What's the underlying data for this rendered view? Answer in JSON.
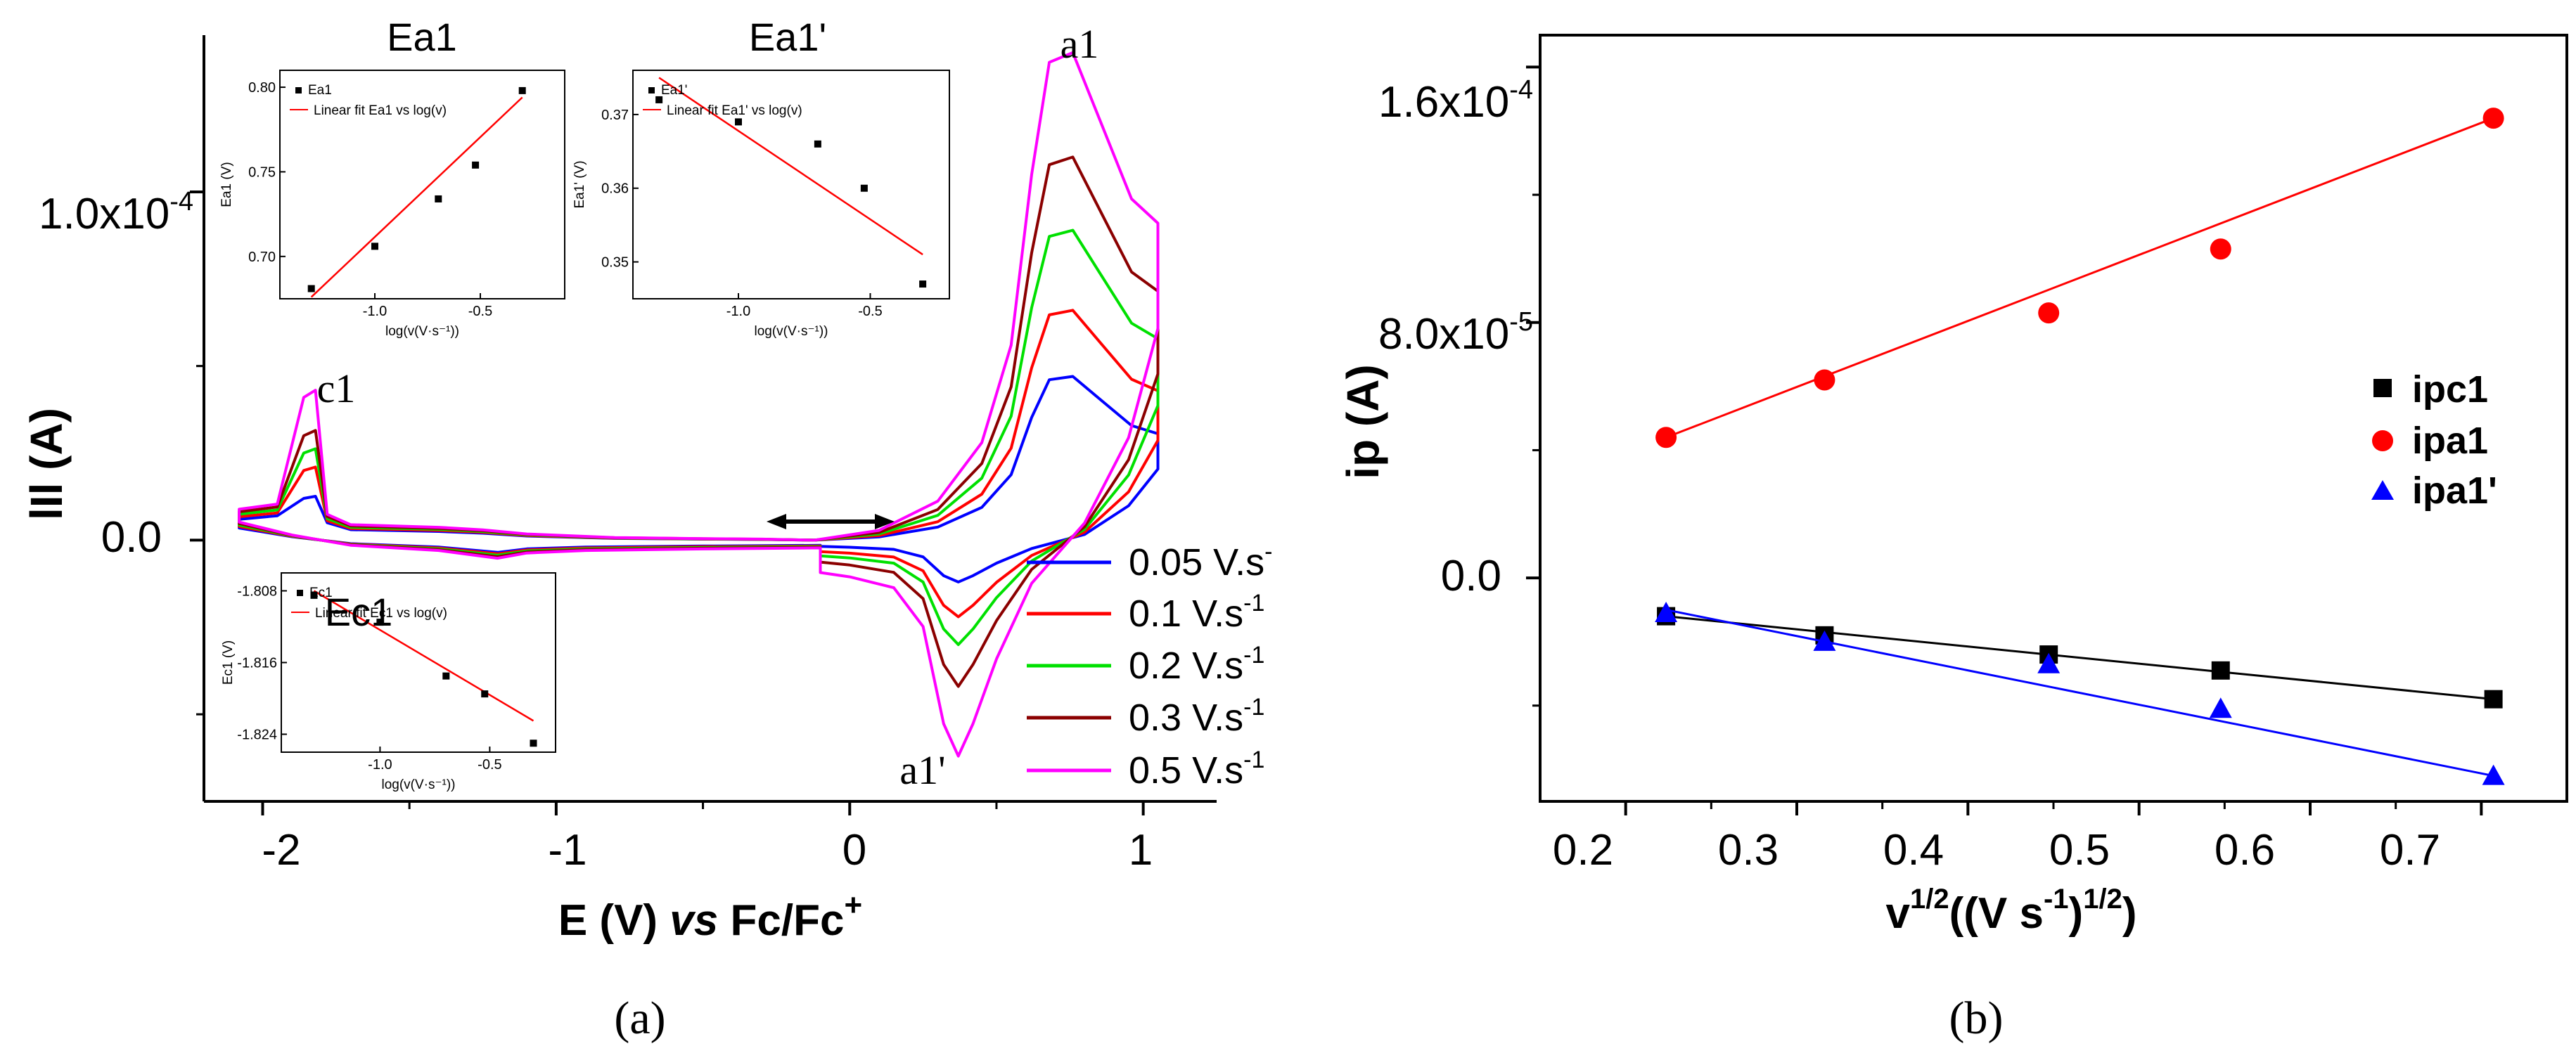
{
  "panel_a": {
    "caption": "(a)",
    "tick_y_1e4": "1.0x10",
    "tick_y_1e4_exp": "-4",
    "tick_y_0": "0.0",
    "ylabel": "lIl (A)",
    "xlabel_pre": "E (V) ",
    "xlabel_vs": "vs",
    "xlabel_post": " Fc/Fc",
    "xlabel_sup": "+",
    "x_ticks": [
      "-2",
      "-1",
      "0",
      "1"
    ],
    "peak_labels": {
      "a1": "a1",
      "c1": "c1",
      "a1p": "a1'"
    },
    "legend": [
      {
        "label": "0.05 V.s",
        "sup": "-",
        "color": "#0000ff"
      },
      {
        "label": "0.1 V.s",
        "sup": "-1",
        "color": "#ff0000"
      },
      {
        "label": "0.2 V.s",
        "sup": "-1",
        "color": "#00e000"
      },
      {
        "label": "0.3 V.s",
        "sup": "-1",
        "color": "#8b0000"
      },
      {
        "label": "0.5 V.s",
        "sup": "-1",
        "color": "#ff00ff"
      }
    ]
  },
  "insets": [
    {
      "id": "ea1",
      "title": "Ea1",
      "ylabel": "Ea1 (V)",
      "xlabel": "log(v(V·s⁻¹))",
      "legend_point": "Ea1",
      "legend_fit": "Linear fit Ea1 vs log(v)",
      "y_ticks": [
        "0.80",
        "0.75",
        "0.70"
      ],
      "x_ticks": [
        "-1.0",
        "-0.5"
      ]
    },
    {
      "id": "ea1p",
      "title": "Ea1'",
      "ylabel": "Ea1' (V)",
      "xlabel": "log(v(V·s⁻¹))",
      "legend_point": "Ea1'",
      "legend_fit": "Linear fit Ea1' vs log(v)",
      "y_ticks": [
        "0.37",
        "0.36",
        "0.35"
      ],
      "x_ticks": [
        "-1.0",
        "-0.5"
      ]
    },
    {
      "id": "ec1",
      "title": "Ec1",
      "ylabel": "Ec1 (V)",
      "xlabel": "log(v(V·s⁻¹))",
      "legend_point": "Ec1",
      "legend_fit": "Linear fit Ec1 vs log(v)",
      "y_ticks": [
        "-1.808",
        "-1.816",
        "-1.824"
      ],
      "x_ticks": [
        "-1.0",
        "-0.5"
      ]
    }
  ],
  "panel_b": {
    "caption": "(b)",
    "ylabel": "ip (A)",
    "xlabel_pre": "v",
    "xlabel_sup1": "1/2",
    "xlabel_mid": "((V s",
    "xlabel_sup2": "-1",
    "xlabel_end": ")",
    "xlabel_sup3": "1/2",
    "xlabel_close": ")",
    "y_ticks": [
      {
        "base": "1.6x10",
        "exp": "-4"
      },
      {
        "base": "8.0x10",
        "exp": "-5"
      },
      {
        "base": "0.0",
        "exp": ""
      }
    ],
    "x_ticks": [
      "0.2",
      "0.3",
      "0.4",
      "0.5",
      "0.6",
      "0.7"
    ],
    "legend": [
      {
        "label": "ipc1",
        "color": "#000000",
        "marker": "square"
      },
      {
        "label": "ipa1",
        "color": "#ff0000",
        "marker": "circle"
      },
      {
        "label": "ipa1'",
        "color": "#0000ff",
        "marker": "triangle"
      }
    ]
  },
  "chart_data": [
    {
      "type": "line",
      "panel": "a",
      "xlabel": "E (V) vs Fc/Fc+",
      "ylabel": "lIl (A)",
      "xlim": [
        -2.2,
        1.25
      ],
      "ylim": [
        -7.5e-05,
        0.000145
      ],
      "note": "cyclic voltammograms at five scan rates",
      "series": [
        {
          "name": "0.05 V.s-",
          "peak_a1": 4.7e-05,
          "peak_a1p": -1.2e-05,
          "peak_c1": 1.2e-05
        },
        {
          "name": "0.1 V.s-1",
          "peak_a1": 6.6e-05,
          "peak_a1p": -2.2e-05,
          "peak_c1": 2e-05
        },
        {
          "name": "0.2 V.s-1",
          "peak_a1": 8.9e-05,
          "peak_a1p": -3e-05,
          "peak_c1": 2.5e-05
        },
        {
          "name": "0.3 V.s-1",
          "peak_a1": 0.00011,
          "peak_a1p": -4.2e-05,
          "peak_c1": 3e-05
        },
        {
          "name": "0.5 V.s-1",
          "peak_a1": 0.00014,
          "peak_a1p": -6.2e-05,
          "peak_c1": 4.1e-05
        }
      ]
    },
    {
      "type": "scatter",
      "panel": "inset-Ea1",
      "title": "Ea1",
      "xlabel": "log(v(V·s⁻¹))",
      "ylabel": "Ea1 (V)",
      "xlim": [
        -1.45,
        -0.1
      ],
      "ylim": [
        0.675,
        0.81
      ],
      "x": [
        -1.301,
        -1.0,
        -0.699,
        -0.523,
        -0.301
      ],
      "y": [
        0.681,
        0.706,
        0.734,
        0.754,
        0.798
      ],
      "fit": {
        "x": [
          -1.301,
          -0.301
        ],
        "y": [
          0.676,
          0.794
        ]
      }
    },
    {
      "type": "scatter",
      "panel": "inset-Ea1'",
      "title": "Ea1'",
      "xlabel": "log(v(V·s⁻¹))",
      "ylabel": "Ea1' (V)",
      "xlim": [
        -1.4,
        -0.2
      ],
      "ylim": [
        0.345,
        0.376
      ],
      "x": [
        -1.301,
        -1.0,
        -0.699,
        -0.523,
        -0.301
      ],
      "y": [
        0.372,
        0.369,
        0.366,
        0.36,
        0.347
      ],
      "fit": {
        "x": [
          -1.301,
          -0.301
        ],
        "y": [
          0.375,
          0.351
        ]
      }
    },
    {
      "type": "scatter",
      "panel": "inset-Ec1",
      "title": "Ec1",
      "xlabel": "log(v(V·s⁻¹))",
      "ylabel": "Ec1 (V)",
      "xlim": [
        -1.45,
        -0.2
      ],
      "ylim": [
        -1.826,
        -1.806
      ],
      "x": [
        -1.301,
        -1.0,
        -0.699,
        -0.523,
        -0.301
      ],
      "y": [
        -1.8085,
        -1.8115,
        -1.8175,
        -1.8195,
        -1.825
      ],
      "fit": {
        "x": [
          -1.301,
          -0.301
        ],
        "y": [
          -1.808,
          -1.8225
        ]
      }
    },
    {
      "type": "scatter",
      "panel": "b",
      "xlabel": "v1/2((V s-1)1/2)",
      "ylabel": "ip (A)",
      "xlim": [
        0.15,
        0.75
      ],
      "ylim": [
        -7e-05,
        0.00017
      ],
      "x": [
        0.2236,
        0.3162,
        0.4472,
        0.5477,
        0.7071
      ],
      "series": [
        {
          "name": "ipc1",
          "values": [
            -1.2e-05,
            -1.8e-05,
            -2.4e-05,
            -2.9e-05,
            -3.8e-05
          ],
          "fit": [
            -1.2e-05,
            -3.8e-05
          ]
        },
        {
          "name": "ipa1",
          "values": [
            4.4e-05,
            6.2e-05,
            8.3e-05,
            0.000103,
            0.000144
          ],
          "fit": [
            4.4e-05,
            0.000144
          ]
        },
        {
          "name": "ipa1'",
          "values": [
            -1.1e-05,
            -2e-05,
            -2.7e-05,
            -4.1e-05,
            -6.2e-05
          ],
          "fit": [
            -1e-05,
            -6.2e-05
          ]
        }
      ]
    }
  ]
}
